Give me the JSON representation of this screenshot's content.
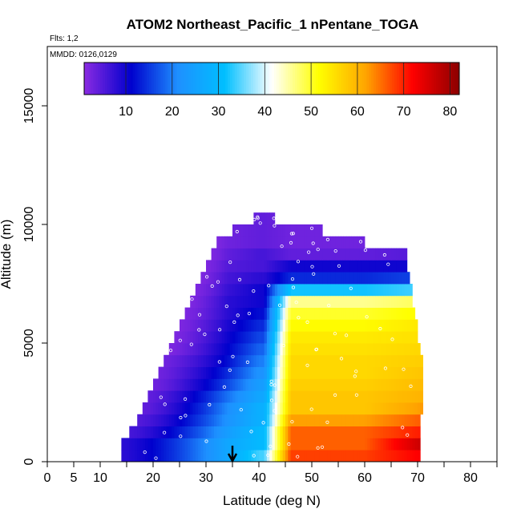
{
  "chart_data": {
    "type": "heatmap",
    "title": "ATOM2 Northeast_Pacific_1 nPentane_TOGA",
    "flights_label": "Flts: 1,2",
    "dates_label": "MMDD: 0126,0129",
    "xlabel": "Latitude (deg N)",
    "ylabel": "Altitude (m)",
    "xlim": [
      0,
      85
    ],
    "ylim": [
      0,
      17500
    ],
    "x_ticks": [
      0,
      5,
      10,
      20,
      30,
      40,
      50,
      60,
      70,
      80
    ],
    "x_minor_ticks": [
      15,
      25,
      35,
      45,
      55,
      65,
      75,
      85
    ],
    "y_ticks": [
      0,
      5000,
      10000,
      15000
    ],
    "colorbar": {
      "range": [
        1,
        82
      ],
      "ticks": [
        10,
        20,
        30,
        40,
        50,
        60,
        70,
        80
      ],
      "colors": [
        "#8a2be2",
        "#0000cd",
        "#1e90ff",
        "#00bfff",
        "#ffffff",
        "#ffff00",
        "#ffa500",
        "#ff0000",
        "#8b0000"
      ]
    },
    "marker_latitude": 35,
    "alt_bins": [
      {
        "alt": 250,
        "lat_min": 14,
        "lat_max": 70.5,
        "left": 8,
        "band": 26,
        "dip": 34,
        "east": 68,
        "hot": 72
      },
      {
        "alt": 750,
        "lat_min": 14,
        "lat_max": 70.5,
        "left": 8,
        "band": 26,
        "dip": 30,
        "east": 66,
        "hot": 76
      },
      {
        "alt": 1250,
        "lat_min": 15.5,
        "lat_max": 70.5,
        "left": 6,
        "band": 24,
        "dip": 30,
        "east": 66,
        "hot": 70
      },
      {
        "alt": 1750,
        "lat_min": 17,
        "lat_max": 70.5,
        "left": 5,
        "band": 22,
        "dip": 28,
        "east": 62,
        "hot": 66
      },
      {
        "alt": 2250,
        "lat_min": 18,
        "lat_max": 71,
        "left": 4,
        "band": 21,
        "dip": 28,
        "east": 58,
        "hot": 62
      },
      {
        "alt": 2750,
        "lat_min": 19,
        "lat_max": 71,
        "left": 4,
        "band": 19,
        "dip": 26,
        "east": 58,
        "hot": 60
      },
      {
        "alt": 3250,
        "lat_min": 20,
        "lat_max": 71,
        "left": 3,
        "band": 16,
        "dip": 24,
        "east": 57,
        "hot": 59
      },
      {
        "alt": 3750,
        "lat_min": 21,
        "lat_max": 71,
        "left": 3,
        "band": 14,
        "dip": 22,
        "east": 56,
        "hot": 58
      },
      {
        "alt": 4250,
        "lat_min": 22,
        "lat_max": 71,
        "left": 3,
        "band": 12,
        "dip": 20,
        "east": 56,
        "hot": 57
      },
      {
        "alt": 4750,
        "lat_min": 23,
        "lat_max": 70.5,
        "left": 2,
        "band": 11,
        "dip": 18,
        "east": 55,
        "hot": 56
      },
      {
        "alt": 5250,
        "lat_min": 24,
        "lat_max": 70,
        "left": 2,
        "band": 10,
        "dip": 16,
        "east": 54,
        "hot": 55
      },
      {
        "alt": 5750,
        "lat_min": 25,
        "lat_max": 70,
        "left": 2,
        "band": 9,
        "dip": 14,
        "east": 52,
        "hot": 54
      },
      {
        "alt": 6250,
        "lat_min": 26,
        "lat_max": 69.5,
        "left": 2,
        "band": 8,
        "dip": 12,
        "east": 50,
        "hot": 52
      },
      {
        "alt": 6750,
        "lat_min": 27,
        "lat_max": 69,
        "left": 2,
        "band": 8,
        "dip": 10,
        "east": 46,
        "hot": 48
      },
      {
        "alt": 7250,
        "lat_min": 28,
        "lat_max": 69,
        "left": 2,
        "band": 7,
        "dip": 10,
        "east": 32,
        "hot": 34
      },
      {
        "alt": 7750,
        "lat_min": 29,
        "lat_max": 68.5,
        "left": 2,
        "band": 6,
        "dip": 8,
        "east": 14,
        "hot": 16
      },
      {
        "alt": 8250,
        "lat_min": 30,
        "lat_max": 68,
        "left": 2,
        "band": 5,
        "dip": 6,
        "east": 10,
        "hot": 10
      },
      {
        "alt": 8750,
        "lat_min": 31,
        "lat_max": 68,
        "left": 2,
        "band": 4,
        "dip": 6,
        "east": 4,
        "hot": 5
      },
      {
        "alt": 9250,
        "lat_min": 32,
        "lat_max": 60,
        "left": 2,
        "band": 3,
        "dip": 4,
        "east": 3,
        "hot": 3
      },
      {
        "alt": 9750,
        "lat_min": 35,
        "lat_max": 52,
        "left": 2,
        "band": 3,
        "dip": 4,
        "east": 3,
        "hot": 3
      },
      {
        "alt": 10250,
        "lat_min": 39,
        "lat_max": 43,
        "left": 2,
        "band": 3,
        "dip": 4,
        "east": 3,
        "hot": 3
      }
    ]
  }
}
